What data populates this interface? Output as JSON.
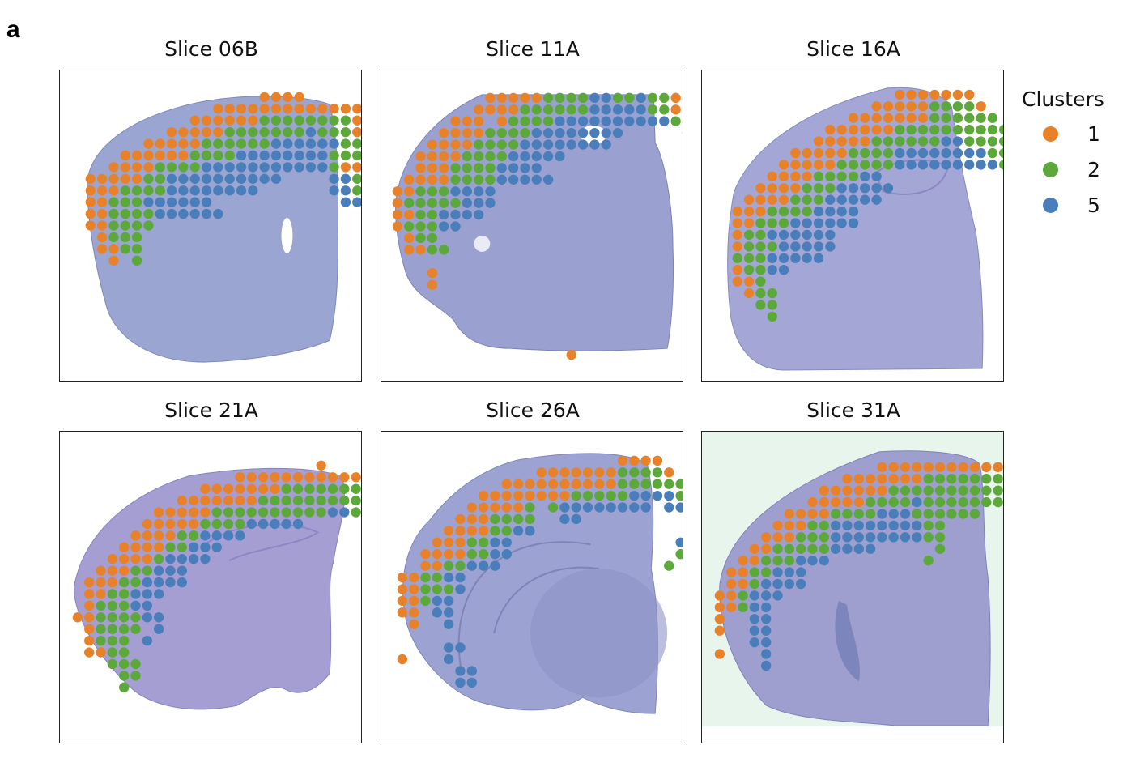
{
  "figure": {
    "panel_label": "a"
  },
  "chart_data": {
    "type": "scatter",
    "description": "Spatial transcriptomics spot clusters overlaid on brain tissue slices",
    "legend": {
      "title": "Clusters",
      "placement": "right",
      "entries": [
        {
          "label": "1",
          "color": "#E8822A",
          "code": "o"
        },
        {
          "label": "2",
          "color": "#5DA83A",
          "code": "g"
        },
        {
          "label": "5",
          "color": "#4A7EBB",
          "code": "b"
        }
      ]
    },
    "tissue_colors": {
      "default": "#9AA3CF",
      "purple_tint": "#A99BCF",
      "bg_31A": "#EAF6EE"
    },
    "panels": [
      {
        "title": "Slice 06B",
        "grid_rows": [
          {
            "row": 0,
            "start": 15,
            "spots": "oooo"
          },
          {
            "row": 1,
            "start": 11,
            "spots": "oooooooooooooo"
          },
          {
            "row": 2,
            "start": 9,
            "spots": "ooooooggggggggoo"
          },
          {
            "row": 3,
            "start": 7,
            "spots": "ooooogggggggbgggo"
          },
          {
            "row": 4,
            "start": 5,
            "spots": "oooooggggggbbbbbbgggo"
          },
          {
            "row": 5,
            "start": 3,
            "spots": "ooooooggggbbbbbbbbgggo"
          },
          {
            "row": 6,
            "start": 2,
            "spots": "ooooggggbbbbbbbbbbbgoo"
          },
          {
            "row": 7,
            "start": 0,
            "spots": "oooooggbbbbbbbbbb....bbgo"
          },
          {
            "row": 8,
            "start": 0,
            "spots": "oooggggbbbbbbbb......bbg"
          },
          {
            "row": 9,
            "start": 0,
            "spots": "oogggbbbbbb...........bb"
          },
          {
            "row": 10,
            "start": 0,
            "spots": "ooggggbbbbbb"
          },
          {
            "row": 11,
            "start": 0,
            "spots": "oogggg"
          },
          {
            "row": 12,
            "start": 1,
            "spots": "oggg"
          },
          {
            "row": 13,
            "start": 1,
            "spots": "oogg"
          },
          {
            "row": 14,
            "start": 2,
            "spots": "o.g"
          }
        ]
      },
      {
        "title": "Slice 11A",
        "grid_rows": [
          {
            "row": 0,
            "start": 8,
            "spots": "oooooggggbbggbggo"
          },
          {
            "row": 1,
            "start": 7,
            "spots": "ooooggggggbbbbbggo"
          },
          {
            "row": 2,
            "start": 5,
            "spots": "ooo.oggggbbbbbbbbbbgo"
          },
          {
            "row": 3,
            "start": 4,
            "spots": "ooooggggbbbbbbbb.....bgo"
          },
          {
            "row": 4,
            "start": 3,
            "spots": "ooooggggbbbbbbbb........g"
          },
          {
            "row": 5,
            "start": 2,
            "spots": "ooooggggbbbbb"
          },
          {
            "row": 6,
            "start": 2,
            "spots": "oooggggbbbb"
          },
          {
            "row": 7,
            "start": 1,
            "spots": "ooooggggbbbbb"
          },
          {
            "row": 8,
            "start": 0,
            "spots": "oogggbbbb"
          },
          {
            "row": 9,
            "start": 0,
            "spots": "ogggggbbb"
          },
          {
            "row": 10,
            "start": 0,
            "spots": "ooggbbbb"
          },
          {
            "row": 11,
            "start": 0,
            "spots": "ogggbb"
          },
          {
            "row": 12,
            "start": 1,
            "spots": "ogg"
          },
          {
            "row": 13,
            "start": 1,
            "spots": "oogg"
          },
          {
            "row": 15,
            "start": 3,
            "spots": "o"
          },
          {
            "row": 16,
            "start": 3,
            "spots": "o"
          },
          {
            "row": 22,
            "start": 15,
            "spots": "o"
          }
        ]
      },
      {
        "title": "Slice 16A",
        "grid_rows": [
          {
            "row": 0,
            "start": 14,
            "spots": "ooooooo"
          },
          {
            "row": 1,
            "start": 12,
            "spots": "oooooggggo"
          },
          {
            "row": 2,
            "start": 10,
            "spots": "ooooooogggggg"
          },
          {
            "row": 3,
            "start": 8,
            "spots": "oooooogggggggggg"
          },
          {
            "row": 4,
            "start": 7,
            "spots": "oooooggggggbbgggg"
          },
          {
            "row": 5,
            "start": 5,
            "spots": "oooooggggbbbbbbbbgg"
          },
          {
            "row": 6,
            "start": 4,
            "spots": "ooooogggggbbbbbbbbbgg"
          },
          {
            "row": 7,
            "start": 3,
            "spots": "ooooggggbb"
          },
          {
            "row": 8,
            "start": 2,
            "spots": "oooogggbbbbb"
          },
          {
            "row": 9,
            "start": 1,
            "spots": "oooogggbbbbb"
          },
          {
            "row": 10,
            "start": 0,
            "spots": "oooggggbbbb"
          },
          {
            "row": 11,
            "start": 0,
            "spots": "oogggbbbbbb"
          },
          {
            "row": 12,
            "start": 0,
            "spots": "oggbbbbbb"
          },
          {
            "row": 13,
            "start": 0,
            "spots": "ogggbbbbb"
          },
          {
            "row": 14,
            "start": 0,
            "spots": "gggbbbbb"
          },
          {
            "row": 15,
            "start": 0,
            "spots": "oggbb"
          },
          {
            "row": 16,
            "start": 0,
            "spots": "oog"
          },
          {
            "row": 17,
            "start": 1,
            "spots": "ogg"
          },
          {
            "row": 18,
            "start": 2,
            "spots": "gg"
          },
          {
            "row": 19,
            "start": 3,
            "spots": "g"
          }
        ]
      },
      {
        "title": "Slice 21A",
        "grid_rows": [
          {
            "row": 0,
            "start": 21,
            "spots": "o"
          },
          {
            "row": 1,
            "start": 14,
            "spots": "oooooooooooooo"
          },
          {
            "row": 2,
            "start": 11,
            "spots": "oooooooggggggggggoo"
          },
          {
            "row": 3,
            "start": 9,
            "spots": "oooooooggggggggggggggg"
          },
          {
            "row": 4,
            "start": 7,
            "spots": "oooooggggggggggbbgggggg"
          },
          {
            "row": 5,
            "start": 6,
            "spots": "oooooggggbbbbb......bgggg"
          },
          {
            "row": 6,
            "start": 5,
            "spots": "ooooggbbbb..........gggg"
          },
          {
            "row": 7,
            "start": 4,
            "spots": "ooooggbbb"
          },
          {
            "row": 8,
            "start": 3,
            "spots": "oooogbbbb"
          },
          {
            "row": 9,
            "start": 2,
            "spots": "oooggbbb"
          },
          {
            "row": 10,
            "start": 1,
            "spots": "oooggbbbb"
          },
          {
            "row": 11,
            "start": 1,
            "spots": "ooggbbb"
          },
          {
            "row": 12,
            "start": 1,
            "spots": "ogggbb"
          },
          {
            "row": 13,
            "start": 0,
            "spots": "ooggggbb"
          },
          {
            "row": 14,
            "start": 1,
            "spots": "ogggg.b"
          },
          {
            "row": 15,
            "start": 1,
            "spots": "oggg.b"
          },
          {
            "row": 16,
            "start": 1,
            "spots": "oogg"
          },
          {
            "row": 17,
            "start": 3,
            "spots": "ggg"
          },
          {
            "row": 18,
            "start": 4,
            "spots": "gg"
          },
          {
            "row": 19,
            "start": 4,
            "spots": "g"
          }
        ]
      },
      {
        "title": "Slice 26A",
        "grid_rows": [
          {
            "row": 0,
            "start": 19,
            "spots": "oooo"
          },
          {
            "row": 1,
            "start": 12,
            "spots": "oooooooggggo"
          },
          {
            "row": 2,
            "start": 9,
            "spots": "oooooooooogggggggggg"
          },
          {
            "row": 3,
            "start": 7,
            "spots": "oooooooogggggbbbbgggg"
          },
          {
            "row": 4,
            "start": 6,
            "spots": "ooooog.gbbbbbbbb.bbggg"
          },
          {
            "row": 5,
            "start": 5,
            "spots": "ooogggg..bb..........bggg"
          },
          {
            "row": 6,
            "start": 4,
            "spots": "ooooggbb...............ggg"
          },
          {
            "row": 7,
            "start": 3,
            "spots": "oooggbb..............bbggg"
          },
          {
            "row": 8,
            "start": 2,
            "spots": "ooooggbb..............ggg"
          },
          {
            "row": 9,
            "start": 2,
            "spots": "ooggbbb..............g"
          },
          {
            "row": 10,
            "start": 0,
            "spots": "ooggbb"
          },
          {
            "row": 11,
            "start": 0,
            "spots": "oogggb"
          },
          {
            "row": 12,
            "start": 0,
            "spots": "oogbb"
          },
          {
            "row": 13,
            "start": 0,
            "spots": "oo.bb"
          },
          {
            "row": 14,
            "start": 1,
            "spots": "o..b"
          },
          {
            "row": 16,
            "start": 4,
            "spots": "bb"
          },
          {
            "row": 17,
            "start": 0,
            "spots": "o...b"
          },
          {
            "row": 18,
            "start": 5,
            "spots": "bb"
          },
          {
            "row": 19,
            "start": 5,
            "spots": "bb"
          }
        ]
      },
      {
        "title": "Slice 31A",
        "grid_rows": [
          {
            "row": 0,
            "start": 14,
            "spots": "ooooooooooo"
          },
          {
            "row": 1,
            "start": 11,
            "spots": "oooooooggggggggo"
          },
          {
            "row": 2,
            "start": 9,
            "spots": "oooooogggggggggggg"
          },
          {
            "row": 3,
            "start": 8,
            "spots": "oooooggggbggggggggg"
          },
          {
            "row": 4,
            "start": 6,
            "spots": "ooooggggbbbgggggg"
          },
          {
            "row": 5,
            "start": 5,
            "spots": "oooggbbbbbbbbgg"
          },
          {
            "row": 6,
            "start": 4,
            "spots": "ooogggbbbbbbbbgg"
          },
          {
            "row": 7,
            "start": 3,
            "spots": "oogggggbbbb.....g"
          },
          {
            "row": 8,
            "start": 2,
            "spots": "oogggbbb........g"
          },
          {
            "row": 9,
            "start": 1,
            "spots": "ooggbbb"
          },
          {
            "row": 10,
            "start": 1,
            "spots": "oogbbbb"
          },
          {
            "row": 11,
            "start": 0,
            "spots": "oogbbb"
          },
          {
            "row": 12,
            "start": 0,
            "spots": "oogbb"
          },
          {
            "row": 13,
            "start": 0,
            "spots": "o..bb"
          },
          {
            "row": 14,
            "start": 0,
            "spots": "o..bb"
          },
          {
            "row": 15,
            "start": 3,
            "spots": "bb"
          },
          {
            "row": 16,
            "start": 0,
            "spots": "o...b"
          },
          {
            "row": 17,
            "start": 4,
            "spots": "b"
          }
        ]
      }
    ]
  }
}
